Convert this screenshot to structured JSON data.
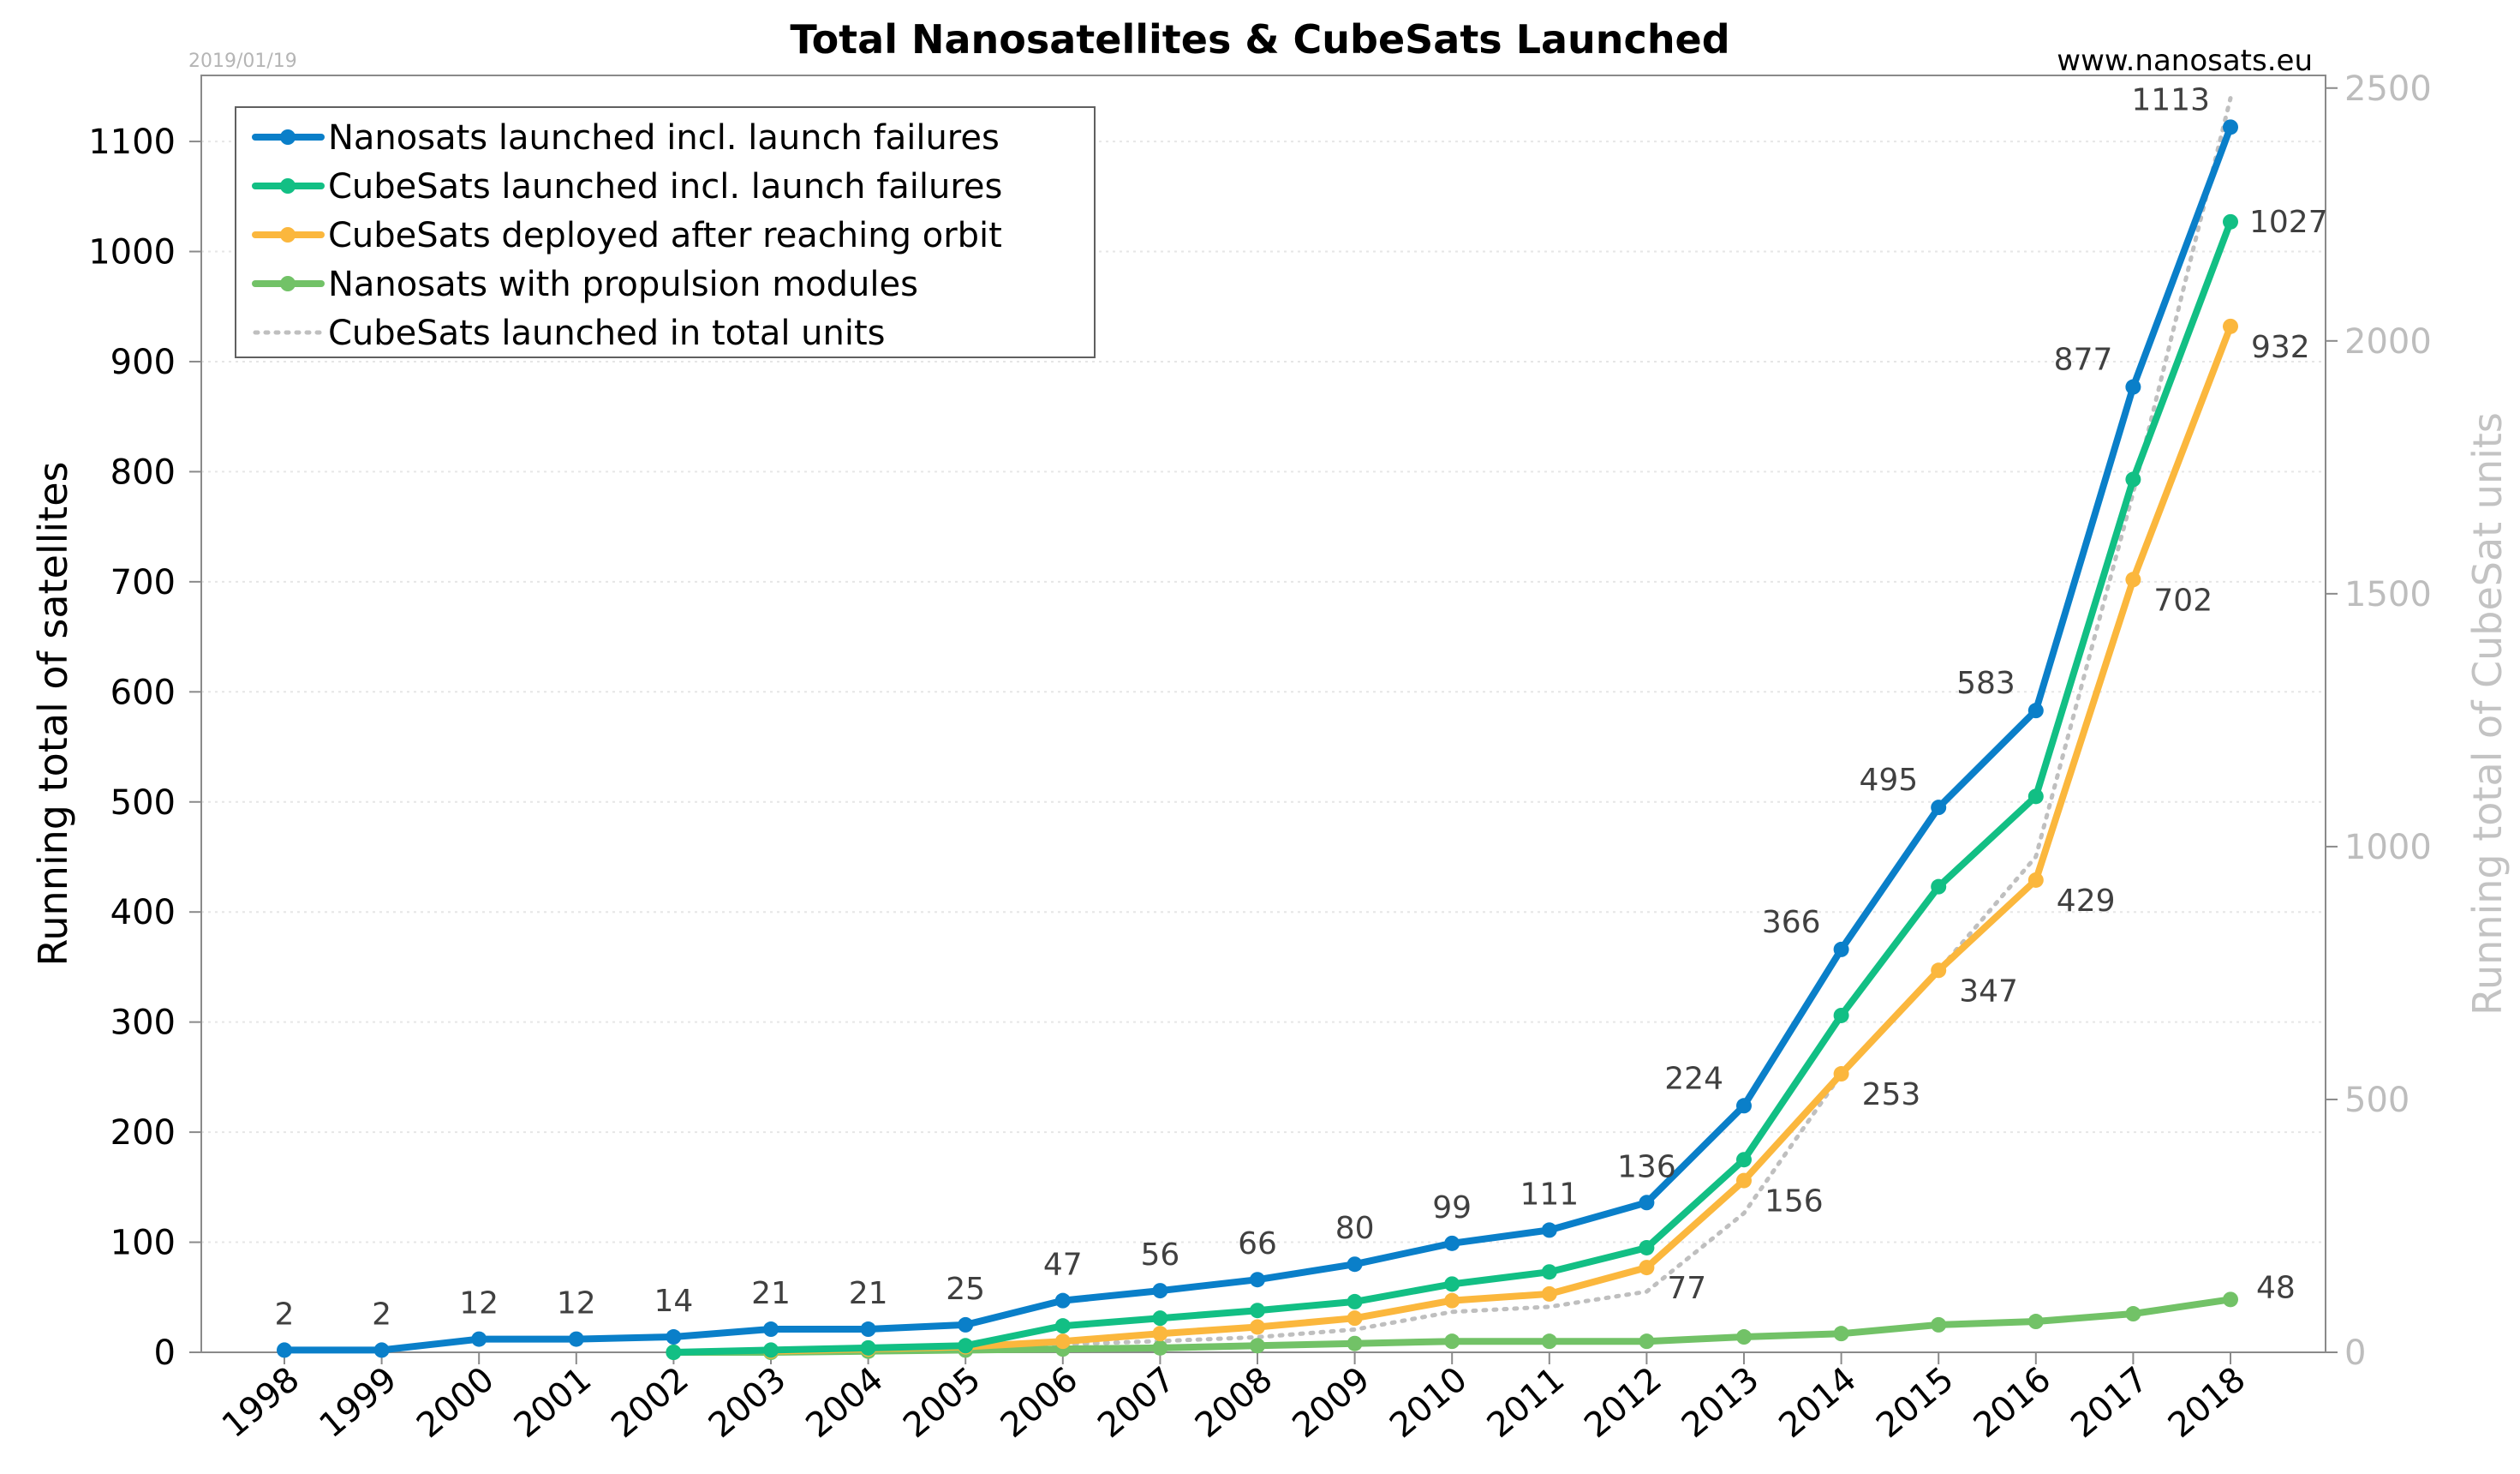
{
  "chart_data": {
    "type": "line",
    "title": "Total Nanosatellites & CubeSats Launched",
    "date_stamp": "2019/01/19",
    "source": "www.nanosats.eu",
    "ylabel": "Running total of satellites",
    "ylabel_right": "Running total of CubeSat units",
    "ylim": [
      0,
      1160
    ],
    "ylim_right": [
      0,
      2525
    ],
    "yticks": [
      0,
      100,
      200,
      300,
      400,
      500,
      600,
      700,
      800,
      900,
      1000,
      1100
    ],
    "yticks_right": [
      0,
      500,
      1000,
      1500,
      2000,
      2500
    ],
    "grid": true,
    "legend": "top-left",
    "categories": [
      "1998",
      "1999",
      "2000",
      "2001",
      "2002",
      "2003",
      "2004",
      "2005",
      "2006",
      "2007",
      "2008",
      "2009",
      "2010",
      "2011",
      "2012",
      "2013",
      "2014",
      "2015",
      "2016",
      "2017",
      "2018"
    ],
    "series": [
      {
        "name": "Nanosats launched incl. launch failures",
        "color": "#0a7fc9",
        "axis": "left",
        "style": "solid",
        "values": [
          2,
          2,
          12,
          12,
          14,
          21,
          21,
          25,
          47,
          56,
          66,
          80,
          99,
          111,
          136,
          224,
          366,
          495,
          583,
          877,
          1113
        ],
        "labels": [
          "2",
          "2",
          "12",
          "12",
          "14",
          "21",
          "21",
          "25",
          "47",
          "56",
          "66",
          "80",
          "99",
          "111",
          "136",
          "224",
          "366",
          "495",
          "583",
          "877",
          "1113"
        ]
      },
      {
        "name": "CubeSats launched incl. launch failures",
        "color": "#12bf84",
        "axis": "left",
        "style": "solid",
        "values": [
          null,
          null,
          null,
          null,
          0,
          2,
          4,
          6,
          24,
          31,
          38,
          46,
          62,
          73,
          95,
          175,
          306,
          423,
          505,
          793,
          1027
        ],
        "labels": []
      },
      {
        "name": "CubeSats deployed after reaching orbit",
        "color": "#fbb73d",
        "axis": "left",
        "style": "solid",
        "values": [
          null,
          null,
          null,
          null,
          null,
          1,
          3,
          5,
          10,
          17,
          23,
          31,
          47,
          53,
          77,
          156,
          253,
          347,
          429,
          702,
          932
        ],
        "labels": [
          null,
          null,
          null,
          null,
          null,
          null,
          null,
          null,
          null,
          null,
          null,
          null,
          null,
          null,
          "77",
          "156",
          "253",
          "347",
          "429",
          "702",
          "932"
        ]
      },
      {
        "name": "Nanosats with propulsion modules",
        "color": "#72c267",
        "axis": "left",
        "style": "solid",
        "values": [
          null,
          null,
          null,
          null,
          0,
          0,
          1,
          2,
          3,
          4,
          6,
          8,
          10,
          10,
          10,
          14,
          17,
          25,
          28,
          35,
          48
        ],
        "labels": [
          null,
          null,
          null,
          null,
          null,
          null,
          null,
          null,
          null,
          null,
          null,
          null,
          null,
          null,
          null,
          null,
          null,
          null,
          null,
          null,
          "48"
        ]
      },
      {
        "name": "CubeSats launched in total units",
        "color": "#bfbfbf",
        "axis": "right",
        "style": "dotted",
        "values": [
          null,
          null,
          null,
          null,
          0,
          5,
          8,
          12,
          16,
          22,
          30,
          45,
          80,
          90,
          120,
          275,
          550,
          755,
          980,
          1700,
          2480
        ],
        "labels": []
      }
    ],
    "label_rows": {
      "_": "label text positions handled by script"
    }
  }
}
